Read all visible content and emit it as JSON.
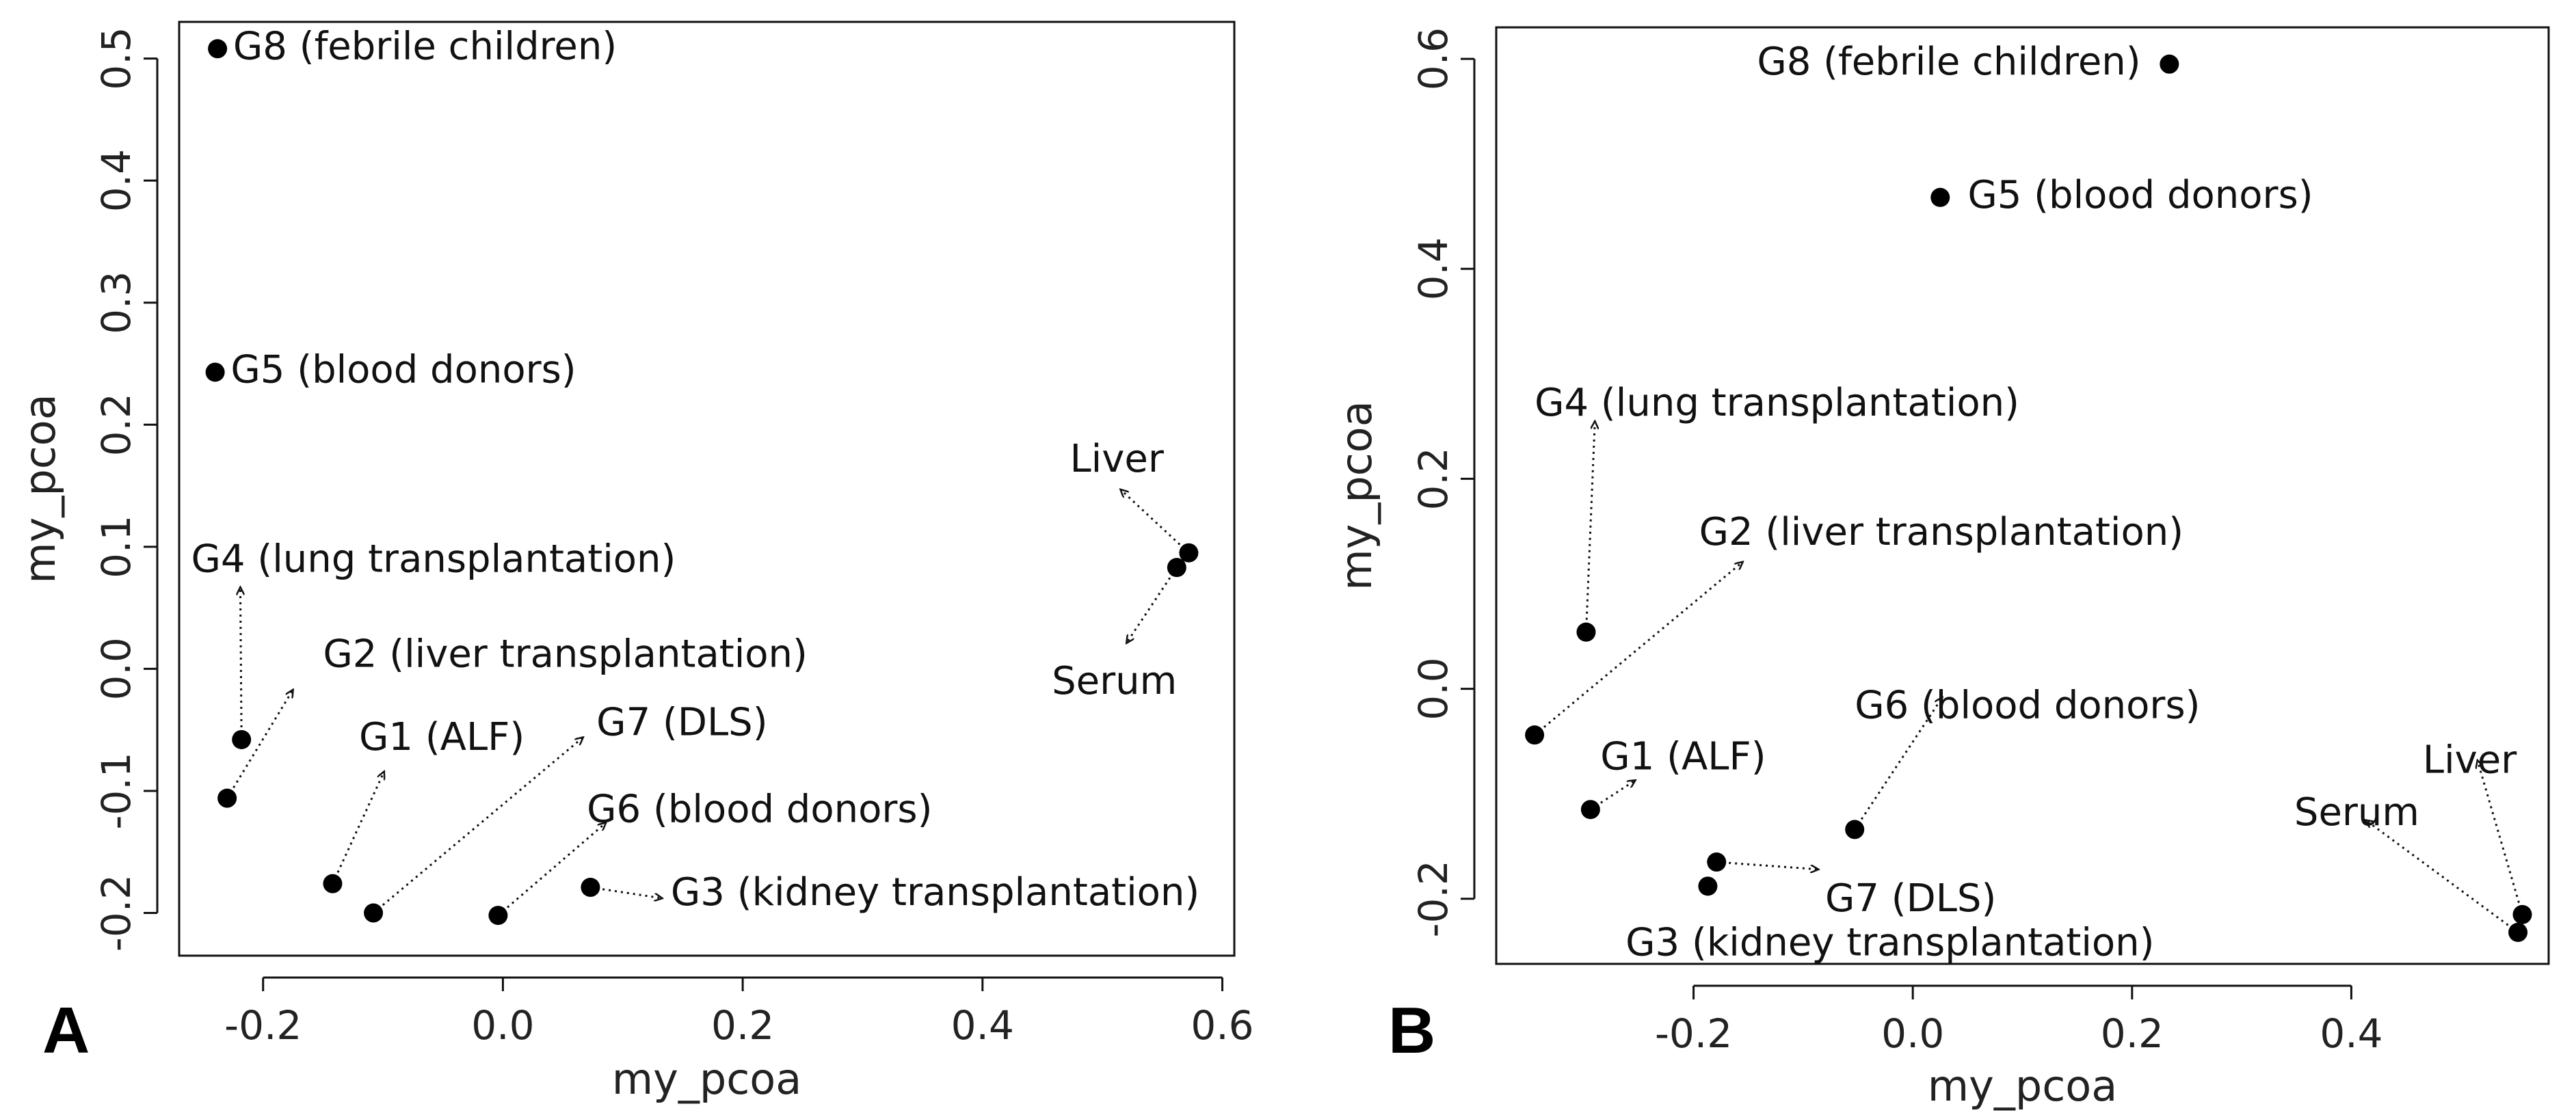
{
  "chart_data": [
    {
      "panel": "A",
      "type": "scatter",
      "xlabel": "my_pcoa",
      "ylabel": "my_pcoa",
      "xlim": [
        -0.27,
        0.61
      ],
      "ylim": [
        -0.235,
        0.53
      ],
      "xticks": [
        {
          "v": -0.2,
          "t": "-0.2"
        },
        {
          "v": 0.0,
          "t": "0.0"
        },
        {
          "v": 0.2,
          "t": "0.2"
        },
        {
          "v": 0.4,
          "t": "0.4"
        },
        {
          "v": 0.6,
          "t": "0.6"
        }
      ],
      "yticks": [
        {
          "v": -0.2,
          "t": "-0.2"
        },
        {
          "v": -0.1,
          "t": "-0.1"
        },
        {
          "v": 0.0,
          "t": "0.0"
        },
        {
          "v": 0.1,
          "t": "0.1"
        },
        {
          "v": 0.2,
          "t": "0.2"
        },
        {
          "v": 0.3,
          "t": "0.3"
        },
        {
          "v": 0.4,
          "t": "0.4"
        },
        {
          "v": 0.5,
          "t": "0.5"
        }
      ],
      "points": [
        {
          "x": -0.238,
          "y": 0.508,
          "label": "G8 (febrile children)",
          "lx": -0.225,
          "ly": 0.508,
          "anchor": "start"
        },
        {
          "x": -0.24,
          "y": 0.243,
          "label": "G5 (blood donors)",
          "lx": -0.227,
          "ly": 0.243,
          "anchor": "start"
        },
        {
          "x": -0.218,
          "y": -0.058,
          "label": "G4 (lung transplantation)",
          "lx": -0.26,
          "ly": 0.088,
          "anchor": "start",
          "ax": -0.219,
          "ay": 0.067
        },
        {
          "x": -0.23,
          "y": -0.106,
          "label": "G2 (liver transplantation)",
          "lx": -0.15,
          "ly": 0.01,
          "anchor": "start",
          "ax": -0.175,
          "ay": -0.017
        },
        {
          "x": -0.142,
          "y": -0.176,
          "label": "G1 (ALF)",
          "lx": -0.12,
          "ly": -0.058,
          "anchor": "start",
          "ax": -0.099,
          "ay": -0.084
        },
        {
          "x": -0.108,
          "y": -0.2,
          "label": "G7 (DLS)",
          "lx": 0.078,
          "ly": -0.046,
          "anchor": "start",
          "ax": 0.067,
          "ay": -0.056
        },
        {
          "x": -0.004,
          "y": -0.202,
          "label": "G6 (blood donors)",
          "lx": 0.07,
          "ly": -0.117,
          "anchor": "start",
          "ax": 0.086,
          "ay": -0.126
        },
        {
          "x": 0.073,
          "y": -0.179,
          "label": "G3 (kidney transplantation)",
          "lx": 0.14,
          "ly": -0.185,
          "anchor": "start",
          "ax": 0.133,
          "ay": -0.188
        },
        {
          "x": 0.572,
          "y": 0.095,
          "label": "Liver",
          "lx": 0.512,
          "ly": 0.17,
          "anchor": "middle",
          "ax": 0.515,
          "ay": 0.147
        },
        {
          "x": 0.562,
          "y": 0.083,
          "label": "Serum",
          "lx": 0.51,
          "ly": -0.012,
          "anchor": "middle",
          "ax": 0.52,
          "ay": 0.021
        }
      ]
    },
    {
      "panel": "B",
      "type": "scatter",
      "xlabel": "my_pcoa",
      "ylabel": "my_pcoa",
      "xlim": [
        -0.38,
        0.58
      ],
      "ylim": [
        -0.262,
        0.63
      ],
      "xticks": [
        {
          "v": -0.2,
          "t": "-0.2"
        },
        {
          "v": 0.0,
          "t": "0.0"
        },
        {
          "v": 0.2,
          "t": "0.2"
        },
        {
          "v": 0.4,
          "t": "0.4"
        }
      ],
      "yticks": [
        {
          "v": -0.2,
          "t": "-0.2"
        },
        {
          "v": 0.0,
          "t": "0.0"
        },
        {
          "v": 0.2,
          "t": "0.2"
        },
        {
          "v": 0.4,
          "t": "0.4"
        },
        {
          "v": 0.6,
          "t": "0.6"
        }
      ],
      "points": [
        {
          "x": 0.234,
          "y": 0.595,
          "label": "G8 (febrile children)",
          "lx": 0.208,
          "ly": 0.595,
          "anchor": "end"
        },
        {
          "x": 0.025,
          "y": 0.468,
          "label": "G5 (blood donors)",
          "lx": 0.05,
          "ly": 0.468,
          "anchor": "start"
        },
        {
          "x": -0.298,
          "y": 0.054,
          "label": "G4 (lung transplantation)",
          "lx": -0.345,
          "ly": 0.27,
          "anchor": "start",
          "ax": -0.29,
          "ay": 0.255
        },
        {
          "x": -0.345,
          "y": -0.044,
          "label": "G2 (liver transplantation)",
          "lx": -0.195,
          "ly": 0.147,
          "anchor": "start",
          "ax": -0.155,
          "ay": 0.121
        },
        {
          "x": -0.294,
          "y": -0.115,
          "label": "G1 (ALF)",
          "lx": -0.285,
          "ly": -0.067,
          "anchor": "start",
          "ax": -0.253,
          "ay": -0.087
        },
        {
          "x": -0.053,
          "y": -0.134,
          "label": "G6 (blood donors)",
          "lx": -0.053,
          "ly": -0.018,
          "anchor": "start",
          "ax": 0.027,
          "ay": -0.008
        },
        {
          "x": -0.179,
          "y": -0.165,
          "label": "G7 (DLS)",
          "lx": -0.08,
          "ly": -0.202,
          "anchor": "start",
          "ax": -0.086,
          "ay": -0.172
        },
        {
          "x": -0.187,
          "y": -0.188,
          "label": "G3 (kidney transplantation)",
          "lx": -0.262,
          "ly": -0.244,
          "anchor": "start"
        },
        {
          "x": 0.556,
          "y": -0.215,
          "label": "Liver",
          "lx": 0.508,
          "ly": -0.07,
          "anchor": "middle",
          "ax": 0.515,
          "ay": -0.068
        },
        {
          "x": 0.552,
          "y": -0.232,
          "label": "Serum",
          "lx": 0.405,
          "ly": -0.12,
          "anchor": "middle",
          "ax": 0.413,
          "ay": -0.125
        }
      ]
    }
  ],
  "panel_labels": [
    "A",
    "B"
  ]
}
